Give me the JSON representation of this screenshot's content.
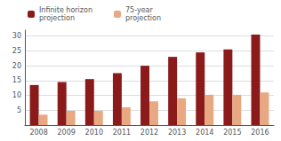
{
  "chart_data": {
    "type": "bar",
    "categories": [
      "2008",
      "2009",
      "2010",
      "2011",
      "2012",
      "2013",
      "2014",
      "2015",
      "2016"
    ],
    "series": [
      {
        "name": "Infinite horizon\nprojection",
        "color": "#8B1A1A",
        "values": [
          13.5,
          14.5,
          15.5,
          17.5,
          20.0,
          23.0,
          24.5,
          25.5,
          30.5
        ]
      },
      {
        "name": "75-year\nprojection",
        "color": "#E8A882",
        "values": [
          3.5,
          4.8,
          4.8,
          6.0,
          8.0,
          9.0,
          10.2,
          10.2,
          11.0
        ]
      }
    ],
    "ylim": [
      0,
      32
    ],
    "yticks": [
      5,
      10,
      15,
      20,
      25,
      30
    ],
    "grid": true,
    "legend": "upper left"
  }
}
